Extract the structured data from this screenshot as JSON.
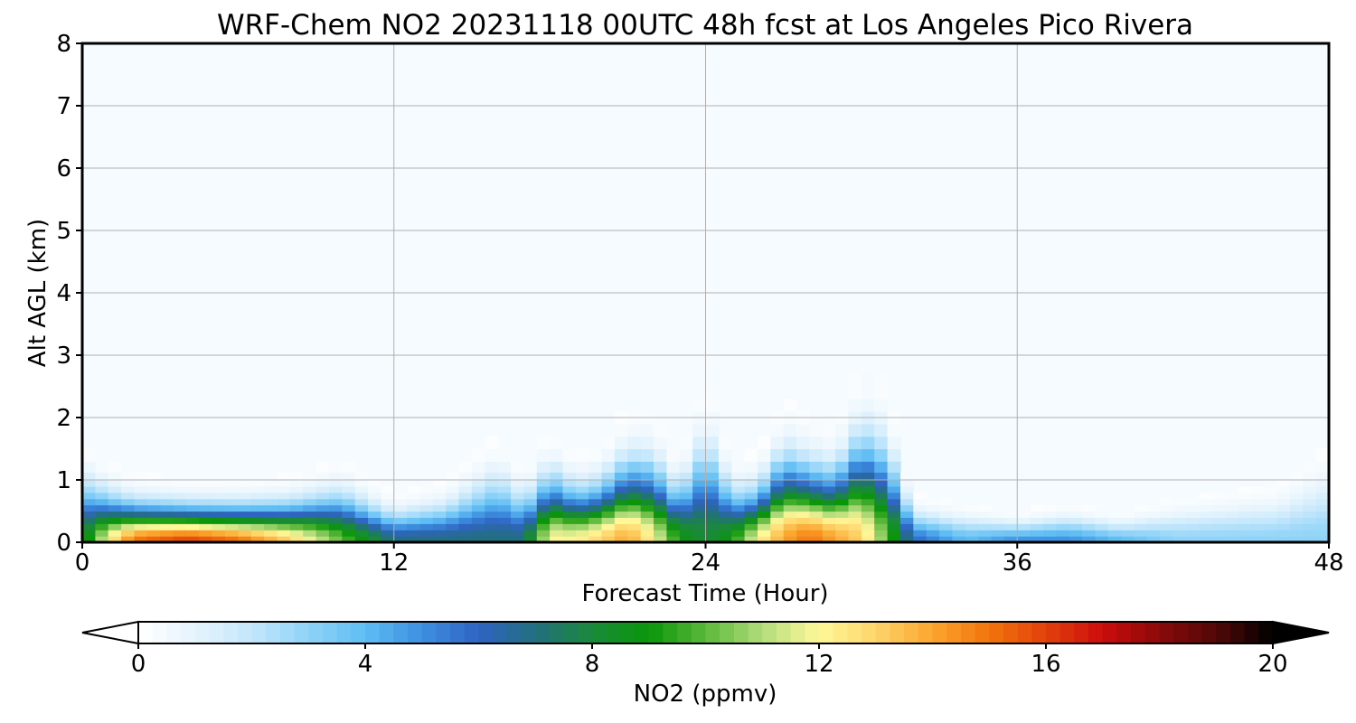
{
  "chart_data": {
    "type": "heatmap",
    "title": "WRF-Chem NO2  20231118 00UTC 48h fcst at Los Angeles Pico Rivera",
    "xlabel": "Forecast Time (Hour)",
    "ylabel": "Alt AGL (km)",
    "xlim": [
      0,
      48
    ],
    "ylim": [
      0,
      8
    ],
    "x_ticks": [
      "0",
      "12",
      "24",
      "36",
      "48"
    ],
    "y_ticks": [
      "0",
      "1",
      "2",
      "3",
      "4",
      "5",
      "6",
      "7",
      "8"
    ],
    "grid": true,
    "colorbar": {
      "label": "NO2  (ppmv)",
      "range": [
        0,
        20
      ],
      "ticks": [
        "0",
        "4",
        "8",
        "12",
        "16",
        "20"
      ],
      "extend": "both",
      "orientation": "horizontal",
      "colors": [
        "#ffffff",
        "#e6f4fd",
        "#c2e6fb",
        "#8fd3f8",
        "#5fbdf3",
        "#3d8fe0",
        "#2f64c2",
        "#226f7e",
        "#1a8a3a",
        "#0a960a",
        "#5cb83a",
        "#b2dc7c",
        "#fff89a",
        "#fdd46a",
        "#fba52e",
        "#f2740c",
        "#e2400c",
        "#cc0c0c",
        "#8a0a0a",
        "#520808",
        "#000000"
      ]
    },
    "profile_hours": [
      0,
      1,
      2,
      4,
      6,
      8,
      10,
      12,
      14,
      16,
      17,
      18,
      19,
      20,
      21,
      22,
      23,
      24,
      25,
      26,
      27,
      28,
      29,
      30,
      31,
      32,
      34,
      36,
      38,
      40,
      42,
      44,
      46,
      48
    ],
    "levels_km": [
      0.05,
      0.15,
      0.25,
      0.35,
      0.45,
      0.55,
      0.65,
      0.75,
      0.85,
      0.95,
      1.05,
      1.2,
      1.4,
      1.6,
      1.8,
      2.0,
      2.2,
      2.4,
      3.0
    ],
    "surface_no2_ppmv": [
      8,
      12,
      15,
      16,
      15,
      13,
      10,
      7,
      7,
      7,
      7,
      12,
      12,
      13,
      14,
      12,
      9,
      8,
      9,
      12,
      14,
      15,
      14,
      13,
      10,
      6,
      4,
      5,
      5,
      4,
      3,
      3,
      3,
      3
    ],
    "mixing_depth_km": [
      1.2,
      0.9,
      0.75,
      0.7,
      0.7,
      0.75,
      0.95,
      0.6,
      0.75,
      1.3,
      0.9,
      1.3,
      1.0,
      1.1,
      1.5,
      1.5,
      1.0,
      2.0,
      1.0,
      1.0,
      1.6,
      1.4,
      1.3,
      2.0,
      1.8,
      0.6,
      0.5,
      0.4,
      0.5,
      0.4,
      0.6,
      0.7,
      0.8,
      1.3
    ]
  }
}
